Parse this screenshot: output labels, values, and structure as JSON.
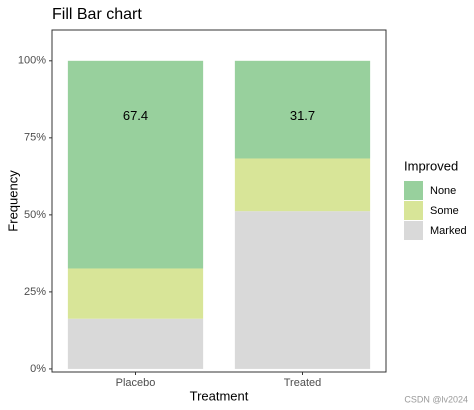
{
  "chart_data": {
    "type": "stacked_bar",
    "title": "Fill Bar chart",
    "x_label": "Treatment",
    "y_label": "Frequency",
    "categories": [
      "Placebo",
      "Treated"
    ],
    "series": [
      {
        "name": "Marked",
        "color": "#d9d9d9",
        "values": [
          16.3,
          51.2
        ]
      },
      {
        "name": "Some",
        "color": "#d8e598",
        "values": [
          16.3,
          17.1
        ]
      },
      {
        "name": "None",
        "color": "#98d09d",
        "values": [
          67.4,
          31.7
        ],
        "labels": true
      }
    ],
    "ylim": [
      -1,
      110
    ],
    "yticks": [
      {
        "value": 0,
        "label": "0%"
      },
      {
        "value": 25,
        "label": "25%"
      },
      {
        "value": 50,
        "label": "50%"
      },
      {
        "value": 75,
        "label": "75%"
      },
      {
        "value": 100,
        "label": "100%"
      }
    ],
    "legend_title": "Improved",
    "legend": "right",
    "watermark": "CSDN @lv2024"
  }
}
